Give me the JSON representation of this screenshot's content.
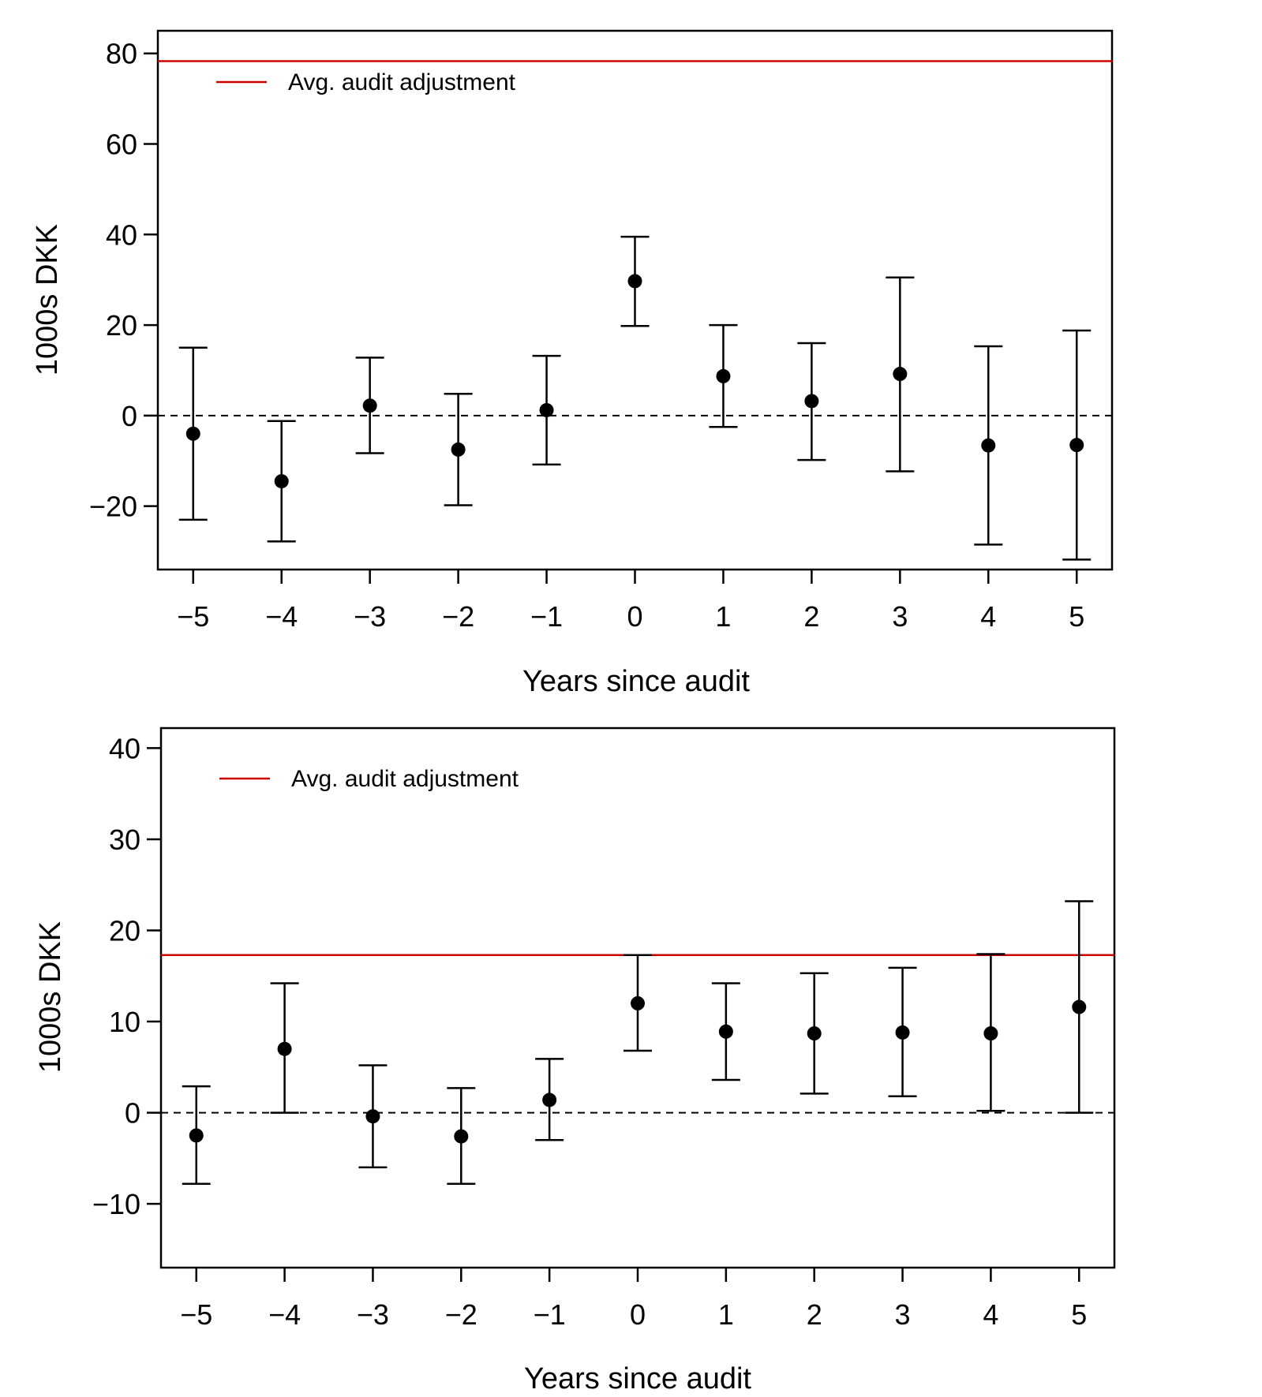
{
  "chart_data": [
    {
      "type": "scatter",
      "title": "",
      "xlabel": "Years since audit",
      "ylabel": "1000s DKK",
      "x_ticks": [
        -5,
        -4,
        -3,
        -2,
        -1,
        0,
        1,
        2,
        3,
        4,
        5
      ],
      "x_tick_labels": [
        "−5",
        "−4",
        "−3",
        "−2",
        "−1",
        "0",
        "1",
        "2",
        "3",
        "4",
        "5"
      ],
      "y_ticks": [
        -20,
        0,
        20,
        40,
        60,
        80
      ],
      "y_tick_labels": [
        "−20",
        "0",
        "20",
        "40",
        "60",
        "80"
      ],
      "xlim": [
        -5.4,
        5.4
      ],
      "ylim": [
        -34,
        85
      ],
      "series": [
        {
          "marker": "filled-circle-with-error-bars",
          "x": [
            -5,
            -4,
            -3,
            -2,
            -1,
            0,
            1,
            2,
            3,
            4,
            5
          ],
          "y": [
            -4,
            -14.5,
            2.2,
            -7.5,
            1.2,
            29.7,
            8.7,
            3.2,
            9.2,
            -6.6,
            -6.5
          ],
          "lower": [
            -23,
            -27.8,
            -8.3,
            -19.8,
            -10.8,
            19.8,
            -2.5,
            -9.8,
            -12.3,
            -28.5,
            -31.8
          ],
          "upper": [
            15,
            -1.2,
            12.8,
            4.8,
            13.2,
            39.5,
            20,
            16,
            30.5,
            15.3,
            18.8
          ]
        }
      ],
      "reference_lines": [
        {
          "label": "Avg. audit adjustment",
          "y": 78.3,
          "color": "#cc0000"
        },
        {
          "label": "",
          "y": 0,
          "color": "#000000",
          "style": "dashed"
        }
      ],
      "legend": {
        "items": [
          "Avg. audit adjustment"
        ],
        "placement": "top-left"
      },
      "grid": false
    },
    {
      "type": "scatter",
      "title": "",
      "xlabel": "Years since audit",
      "ylabel": "1000s DKK",
      "x_ticks": [
        -5,
        -4,
        -3,
        -2,
        -1,
        0,
        1,
        2,
        3,
        4,
        5
      ],
      "x_tick_labels": [
        "−5",
        "−4",
        "−3",
        "−2",
        "−1",
        "0",
        "1",
        "2",
        "3",
        "4",
        "5"
      ],
      "y_ticks": [
        -10,
        0,
        10,
        20,
        30,
        40
      ],
      "y_tick_labels": [
        "−10",
        "0",
        "10",
        "20",
        "30",
        "40"
      ],
      "xlim": [
        -5.4,
        5.4
      ],
      "ylim": [
        -17,
        42.2
      ],
      "series": [
        {
          "marker": "filled-circle-with-error-bars",
          "x": [
            -5,
            -4,
            -3,
            -2,
            -1,
            0,
            1,
            2,
            3,
            4,
            5
          ],
          "y": [
            -2.5,
            7,
            -0.4,
            -2.6,
            1.4,
            12,
            8.9,
            8.7,
            8.8,
            8.7,
            11.6
          ],
          "lower": [
            -7.8,
            0,
            -6,
            -7.8,
            -3,
            6.8,
            3.6,
            2.1,
            1.8,
            0.2,
            0
          ],
          "upper": [
            2.9,
            14.2,
            5.2,
            2.7,
            5.9,
            17.3,
            14.2,
            15.3,
            15.9,
            17.4,
            23.2
          ]
        }
      ],
      "reference_lines": [
        {
          "label": "Avg. audit adjustment",
          "y": 17.3,
          "color": "#cc0000"
        },
        {
          "label": "",
          "y": 0,
          "color": "#000000",
          "style": "dashed"
        }
      ],
      "legend": {
        "items": [
          "Avg. audit adjustment"
        ],
        "placement": "top-left"
      },
      "grid": false
    }
  ]
}
